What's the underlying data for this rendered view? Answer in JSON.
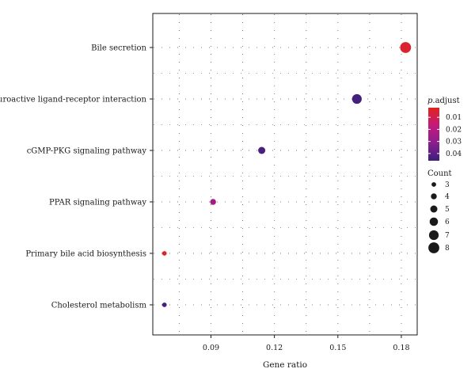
{
  "chart_data": {
    "type": "scatter",
    "xlabel": "Gene ratio",
    "xlim": [
      0.0625,
      0.1875
    ],
    "xticks": [
      0.09,
      0.12,
      0.15,
      0.18
    ],
    "xtick_labels": [
      "0.09",
      "0.12",
      "0.15",
      "0.18"
    ],
    "categories": [
      "Bile secretion",
      "Neuroactive ligand-receptor interaction",
      "cGMP-PKG signaling pathway",
      "PPAR signaling pathway",
      "Primary bile acid biosynthesis",
      "Cholesterol metabolism"
    ],
    "points": [
      {
        "term": "Bile secretion",
        "gene_ratio": 0.182,
        "count": 8,
        "p_adjust": 0.005
      },
      {
        "term": "Neuroactive ligand-receptor interaction",
        "gene_ratio": 0.159,
        "count": 7,
        "p_adjust": 0.044
      },
      {
        "term": "cGMP-PKG signaling pathway",
        "gene_ratio": 0.114,
        "count": 5,
        "p_adjust": 0.043
      },
      {
        "term": "PPAR signaling pathway",
        "gene_ratio": 0.091,
        "count": 4,
        "p_adjust": 0.025
      },
      {
        "term": "Primary bile acid biosynthesis",
        "gene_ratio": 0.068,
        "count": 3,
        "p_adjust": 0.003
      },
      {
        "term": "Cholesterol metabolism",
        "gene_ratio": 0.068,
        "count": 3,
        "p_adjust": 0.044
      }
    ],
    "grid": true,
    "color_legend": {
      "title_italic": "p",
      "title_rest": ".adjust",
      "ticks": [
        0.01,
        0.02,
        0.03,
        0.04
      ],
      "tick_labels": [
        "0.01",
        "0.02",
        "0.03",
        "0.04"
      ],
      "range": [
        0.002,
        0.046
      ],
      "colors": [
        "#e0251c",
        "#c4197a",
        "#8a1f8e",
        "#3b1f7c"
      ]
    },
    "size_legend": {
      "title": "Count",
      "values": [
        3,
        4,
        5,
        6,
        7,
        8
      ],
      "labels": [
        "3",
        "4",
        "5",
        "6",
        "7",
        "8"
      ]
    }
  }
}
